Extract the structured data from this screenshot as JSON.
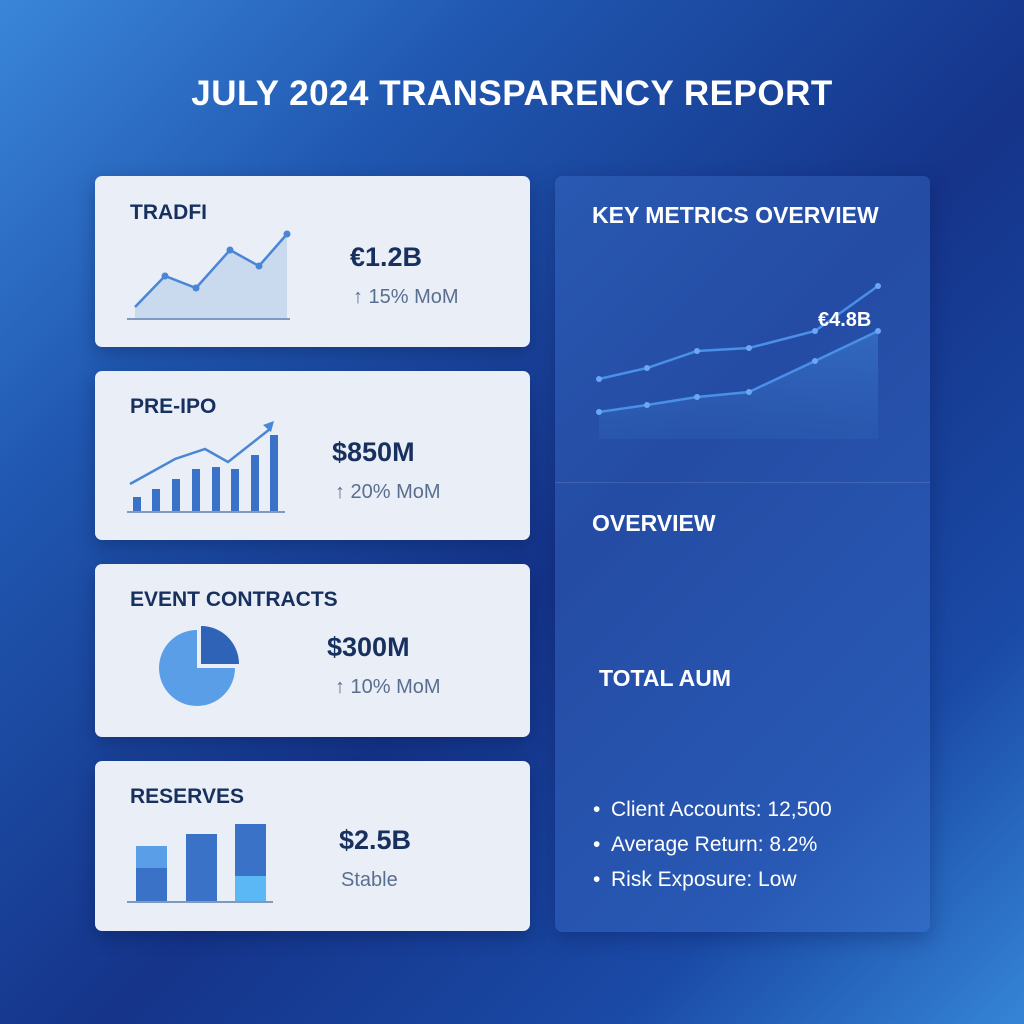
{
  "title": "JULY 2024 TRANSPARENCY REPORT",
  "cards": [
    {
      "title": "TRADFI",
      "value": "€1.2B",
      "change": "↑ 15% MoM",
      "chart": "area"
    },
    {
      "title": "PRE-IPO",
      "value": "$850M",
      "change": "↑ 20% MoM",
      "chart": "bars-trend"
    },
    {
      "title": "EVENT CONTRACTS",
      "value": "$300M",
      "change": "↑ 10% MoM",
      "chart": "pie"
    },
    {
      "title": "RESERVES",
      "value": "$2.5B",
      "change": "Stable",
      "chart": "stacked-bars"
    }
  ],
  "panel": {
    "heading": "KEY METRICS OVERVIEW",
    "chart_label": "€4.8B",
    "overview_heading": "OVERVIEW",
    "aum_heading": "TOTAL AUM",
    "bullets": [
      "Client Accounts: 12,500",
      "Average Return: 8.2%",
      "Risk Exposure: Low"
    ]
  },
  "colors": {
    "card_bg": "#e9eef7",
    "text_dark": "#17305e",
    "accent_blue": "#3a72c8",
    "light_blue": "#5aa8f0"
  }
}
